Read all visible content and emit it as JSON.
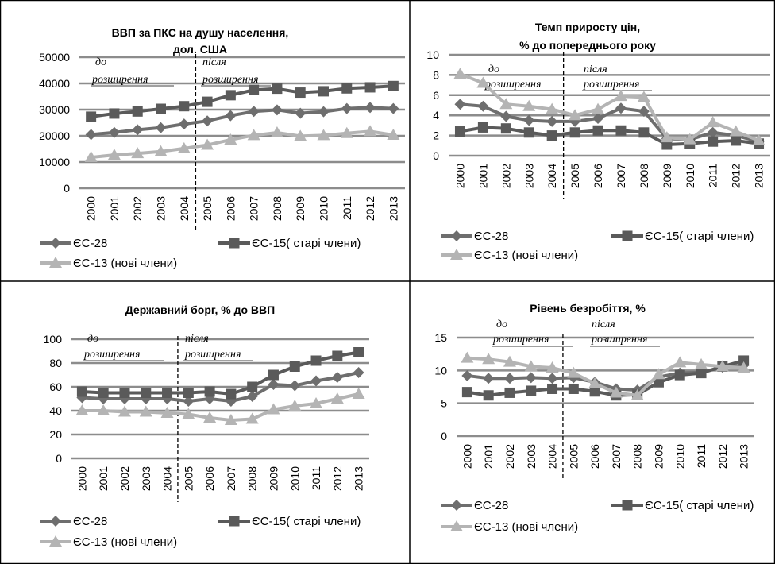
{
  "page": {
    "border_color": "#000000"
  },
  "chart_data": [
    {
      "id": "gdp",
      "type": "line",
      "title_lines": [
        "ВВП за ПКС на душу населення,",
        "дол. США"
      ],
      "categories": [
        "2000",
        "2001",
        "2002",
        "2003",
        "2004",
        "2005",
        "2006",
        "2007",
        "2008",
        "2009",
        "2010",
        "2011",
        "2012",
        "2013"
      ],
      "ylim": [
        0,
        50000
      ],
      "yticks": [
        0,
        10000,
        20000,
        30000,
        40000,
        50000
      ],
      "grid": true,
      "divider_after_index": 4,
      "before_label": [
        "до",
        "розширення"
      ],
      "after_label": [
        "після",
        "розширення"
      ],
      "series": [
        {
          "name": "ЄС-28",
          "marker": "diamond",
          "color": "#6e6e6e",
          "values": [
            20500,
            21300,
            22300,
            23100,
            24500,
            25700,
            27700,
            29300,
            29900,
            28600,
            29200,
            30400,
            30800,
            30400
          ]
        },
        {
          "name": "ЄС-15( старі члени)",
          "marker": "square",
          "color": "#5a5a5a",
          "values": [
            27300,
            28500,
            29300,
            30300,
            31300,
            33000,
            35500,
            37500,
            38000,
            36500,
            37000,
            38100,
            38500,
            39000
          ]
        },
        {
          "name": "ЄС-13 (нові члени)",
          "marker": "triangle",
          "color": "#b4b4b4",
          "values": [
            11800,
            12700,
            13300,
            14000,
            15200,
            16500,
            18500,
            20200,
            21200,
            19900,
            20200,
            21000,
            21700,
            20300
          ]
        }
      ]
    },
    {
      "id": "prices",
      "type": "line",
      "title_lines": [
        "Темп приросту цін,",
        "% до попереднього року"
      ],
      "categories": [
        "2000",
        "2001",
        "2002",
        "2003",
        "2004",
        "2005",
        "2006",
        "2007",
        "2008",
        "2009",
        "2010",
        "2011",
        "2012",
        "2013"
      ],
      "ylim": [
        0,
        10
      ],
      "yticks": [
        0,
        2,
        4,
        6,
        8,
        10
      ],
      "grid": true,
      "divider_after_index": 4,
      "before_label": [
        "до",
        "розширення"
      ],
      "after_label": [
        "після",
        "розширення"
      ],
      "series": [
        {
          "name": "ЄС-28",
          "marker": "diamond",
          "color": "#6e6e6e",
          "values": [
            5.1,
            4.9,
            3.9,
            3.5,
            3.4,
            3.4,
            3.7,
            4.7,
            4.4,
            1.7,
            1.6,
            2.3,
            2.0,
            1.4
          ]
        },
        {
          "name": "ЄС-15( старі члени)",
          "marker": "square",
          "color": "#5a5a5a",
          "values": [
            2.4,
            2.8,
            2.7,
            2.3,
            2.0,
            2.3,
            2.5,
            2.5,
            2.3,
            1.1,
            1.2,
            1.4,
            1.5,
            1.2
          ]
        },
        {
          "name": "ЄС-13 (нові члени)",
          "marker": "triangle",
          "color": "#b4b4b4",
          "values": [
            8.1,
            7.2,
            5.1,
            4.9,
            4.6,
            4.0,
            4.6,
            5.9,
            5.8,
            1.8,
            1.6,
            3.3,
            2.4,
            1.5
          ]
        }
      ]
    },
    {
      "id": "debt",
      "type": "line",
      "title_lines": [
        "Державний борг, % до ВВП"
      ],
      "categories": [
        "2000",
        "2001",
        "2002",
        "2003",
        "2004",
        "2005",
        "2006",
        "2007",
        "2008",
        "2009",
        "2010",
        "2011",
        "2012",
        "2013"
      ],
      "ylim": [
        0,
        100
      ],
      "yticks": [
        0,
        20,
        40,
        60,
        80,
        100
      ],
      "grid": true,
      "divider_after_index": 4,
      "before_label": [
        "до",
        "розширення"
      ],
      "after_label": [
        "після",
        "розширення"
      ],
      "series": [
        {
          "name": "ЄС-28",
          "marker": "diamond",
          "color": "#6e6e6e",
          "values": [
            51,
            50,
            50,
            50,
            50,
            48,
            50,
            48,
            52,
            62,
            61,
            65,
            68,
            72
          ]
        },
        {
          "name": "ЄС-15( старі члени)",
          "marker": "square",
          "color": "#5a5a5a",
          "values": [
            56,
            55,
            55,
            55,
            55,
            55,
            56,
            54,
            60,
            70,
            77,
            82,
            86,
            89
          ]
        },
        {
          "name": "ЄС-13 (нові члени)",
          "marker": "triangle",
          "color": "#b4b4b4",
          "values": [
            40,
            40,
            39,
            39,
            38,
            37,
            34,
            32,
            33,
            41,
            44,
            46,
            50,
            54
          ]
        }
      ]
    },
    {
      "id": "unemployment",
      "type": "line",
      "title_lines": [
        "Рівень безробіття, %"
      ],
      "categories": [
        "2000",
        "2001",
        "2002",
        "2003",
        "2004",
        "2005",
        "2006",
        "2007",
        "2008",
        "2009",
        "2010",
        "2011",
        "2012",
        "2013"
      ],
      "ylim": [
        0,
        15
      ],
      "yticks": [
        0,
        5,
        10,
        15
      ],
      "grid": true,
      "divider_after_index": 4,
      "before_label": [
        "до",
        "розширення"
      ],
      "after_label": [
        "після",
        "розширення"
      ],
      "series": [
        {
          "name": "ЄС-28",
          "marker": "diamond",
          "color": "#6e6e6e",
          "values": [
            9.2,
            8.8,
            8.8,
            8.9,
            8.8,
            8.9,
            8.2,
            7.2,
            7.0,
            9.0,
            9.6,
            9.7,
            10.5,
            10.8
          ]
        },
        {
          "name": "ЄС-15( старі члени)",
          "marker": "square",
          "color": "#5a5a5a",
          "values": [
            6.7,
            6.2,
            6.6,
            6.9,
            7.2,
            7.2,
            6.8,
            6.2,
            6.3,
            8.2,
            9.3,
            9.6,
            10.6,
            11.5
          ]
        },
        {
          "name": "ЄС-13 (нові члени)",
          "marker": "triangle",
          "color": "#b4b4b4",
          "values": [
            11.9,
            11.7,
            11.3,
            10.6,
            10.4,
            9.6,
            8.0,
            6.6,
            6.2,
            9.4,
            11.2,
            10.9,
            10.6,
            10.4
          ]
        }
      ]
    }
  ]
}
